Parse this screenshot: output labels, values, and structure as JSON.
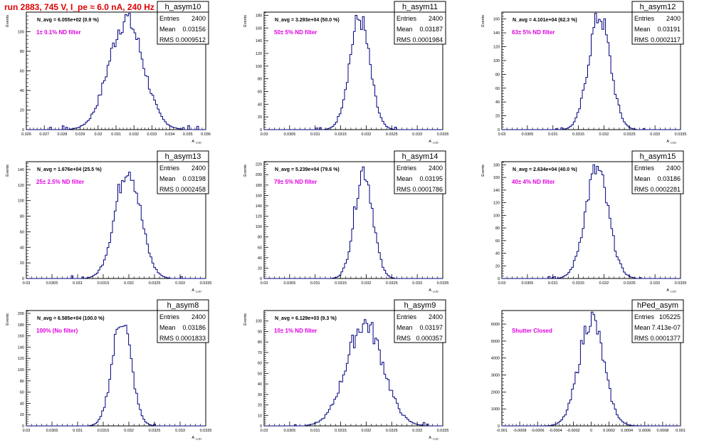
{
  "page": {
    "title": "run 2883,   745 V, I_pe ≈ 6.0 nA, 240 Hz",
    "title_color": "#e00000",
    "hist_color": "#000080",
    "annotation_color": "#e000e0"
  },
  "chart_data": [
    {
      "type": "histogram",
      "name": "h_asym10",
      "ylabel": "Events",
      "xlabel": "A_LUD",
      "xlim": [
        0.026,
        0.036
      ],
      "ylim": [
        0,
        120
      ],
      "xticks": [
        "0.026",
        "0.027",
        "0.028",
        "0.029",
        "0.03",
        "0.031",
        "0.032",
        "0.033",
        "0.034",
        "0.035",
        "0.036"
      ],
      "yticks": [
        0,
        20,
        40,
        60,
        80,
        100
      ],
      "stats": {
        "Entries": "2400",
        "Mean": "0.03156",
        "RMS": "0.0009512"
      },
      "navg": "N_avg = 6.055e+02 (0.9 %)",
      "annotation": "1± 0.1% ND filter",
      "distribution": {
        "mean": 0.03156,
        "rms": 0.0009512,
        "peak": 113,
        "bin_width": 0.0001
      }
    },
    {
      "type": "histogram",
      "name": "h_asym11",
      "ylabel": "Events",
      "xlabel": "A_LUD",
      "xlim": [
        0.03,
        0.0335
      ],
      "ylim": [
        0,
        185
      ],
      "xticks": [
        "0.03",
        "0.0305",
        "0.031",
        "0.0315",
        "0.032",
        "0.0325",
        "0.033",
        "0.0335"
      ],
      "yticks": [
        0,
        20,
        40,
        60,
        80,
        100,
        120,
        140,
        160,
        180
      ],
      "stats": {
        "Entries": "2400",
        "Mean": "0.03187",
        "RMS": "0.0001984"
      },
      "navg": "N_avg = 3.293e+04 (50.0 %)",
      "annotation": "50± 5% ND filter",
      "distribution": {
        "mean": 0.03187,
        "rms": 0.0001984,
        "peak": 175,
        "bin_width": 3.5e-05
      }
    },
    {
      "type": "histogram",
      "name": "h_asym12",
      "ylabel": "Events",
      "xlabel": "A_LUD",
      "xlim": [
        0.03,
        0.0335
      ],
      "ylim": [
        0,
        170
      ],
      "xticks": [
        "0.03",
        "0.0305",
        "0.031",
        "0.0315",
        "0.032",
        "0.0325",
        "0.033",
        "0.0335"
      ],
      "yticks": [
        0,
        20,
        40,
        60,
        80,
        100,
        120,
        140,
        160
      ],
      "stats": {
        "Entries": "2400",
        "Mean": "0.03191",
        "RMS": "0.0002117"
      },
      "navg": "N_avg = 4.101e+04 (62.3 %)",
      "annotation": "63± 5% ND filter",
      "distribution": {
        "mean": 0.03191,
        "rms": 0.0002117,
        "peak": 165,
        "bin_width": 3.5e-05
      }
    },
    {
      "type": "histogram",
      "name": "h_asym13",
      "ylabel": "Events",
      "xlabel": "A_LUD",
      "xlim": [
        0.03,
        0.0335
      ],
      "ylim": [
        0,
        150
      ],
      "xticks": [
        "0.03",
        "0.0305",
        "0.031",
        "0.0315",
        "0.032",
        "0.0325",
        "0.033",
        "0.0335"
      ],
      "yticks": [
        0,
        20,
        40,
        60,
        80,
        100,
        120,
        140
      ],
      "stats": {
        "Entries": "2400",
        "Mean": "0.03198",
        "RMS": "0.0002458"
      },
      "navg": "N_avg = 1.676e+04 (25.5 %)",
      "annotation": "25± 2.5% ND filter",
      "distribution": {
        "mean": 0.03198,
        "rms": 0.0002458,
        "peak": 143,
        "bin_width": 3.5e-05
      }
    },
    {
      "type": "histogram",
      "name": "h_asym14",
      "ylabel": "Events",
      "xlabel": "A_LUD",
      "xlim": [
        0.03,
        0.0335
      ],
      "ylim": [
        0,
        225
      ],
      "xticks": [
        "0.03",
        "0.0305",
        "0.031",
        "0.0315",
        "0.032",
        "0.0325",
        "0.033",
        "0.0335"
      ],
      "yticks": [
        0,
        20,
        40,
        60,
        80,
        100,
        120,
        140,
        160,
        180,
        200,
        220
      ],
      "stats": {
        "Entries": "2400",
        "Mean": "0.03195",
        "RMS": "0.0001786"
      },
      "navg": "N_avg = 5.239e+04 (79.6 %)",
      "annotation": "79± 5% ND filter",
      "distribution": {
        "mean": 0.03195,
        "rms": 0.0001786,
        "peak": 210,
        "bin_width": 3.5e-05
      }
    },
    {
      "type": "histogram",
      "name": "h_asym15",
      "ylabel": "Events",
      "xlabel": "A_LUD",
      "xlim": [
        0.03,
        0.0335
      ],
      "ylim": [
        0,
        185
      ],
      "xticks": [
        "0.03",
        "0.0305",
        "0.031",
        "0.0315",
        "0.032",
        "0.0325",
        "0.033",
        "0.0335"
      ],
      "yticks": [
        0,
        20,
        40,
        60,
        80,
        100,
        120,
        140,
        160,
        180
      ],
      "stats": {
        "Entries": "2400",
        "Mean": "0.03186",
        "RMS": "0.0002281"
      },
      "navg": "N_avg = 2.634e+04 (40.0 %)",
      "annotation": "40± 4% ND filter",
      "distribution": {
        "mean": 0.03186,
        "rms": 0.0002281,
        "peak": 172,
        "bin_width": 3.5e-05
      }
    },
    {
      "type": "histogram",
      "name": "h_asym8",
      "ylabel": "Events",
      "xlabel": "A_LUD",
      "xlim": [
        0.03,
        0.0335
      ],
      "ylim": [
        0,
        205
      ],
      "xticks": [
        "0.03",
        "0.0305",
        "0.031",
        "0.0315",
        "0.032",
        "0.0325",
        "0.033",
        "0.0335"
      ],
      "yticks": [
        0,
        20,
        40,
        60,
        80,
        100,
        120,
        140,
        160,
        180,
        200
      ],
      "stats": {
        "Entries": "2400",
        "Mean": "0.03186",
        "RMS": "0.0001833"
      },
      "navg": "N_avg = 6.585e+04 (100.0 %)",
      "annotation": "100% (No filter)",
      "distribution": {
        "mean": 0.03186,
        "rms": 0.0001833,
        "peak": 192,
        "bin_width": 3.5e-05
      }
    },
    {
      "type": "histogram",
      "name": "h_asym9",
      "ylabel": "Events",
      "xlabel": "A_LUD",
      "xlim": [
        0.03,
        0.0335
      ],
      "ylim": [
        0,
        110
      ],
      "xticks": [
        "0.03",
        "0.0305",
        "0.031",
        "0.0315",
        "0.032",
        "0.0325",
        "0.033",
        "0.0335"
      ],
      "yticks": [
        0,
        10,
        20,
        30,
        40,
        50,
        60,
        70,
        80,
        90,
        100
      ],
      "stats": {
        "Entries": "2400",
        "Mean": "0.03197",
        "RMS": "0.000357"
      },
      "navg": "N_avg = 6.129e+03 (9.3 %)",
      "annotation": "10± 1% ND filter",
      "distribution": {
        "mean": 0.03197,
        "rms": 0.000357,
        "peak": 98,
        "bin_width": 3.5e-05
      }
    },
    {
      "type": "histogram",
      "name": "hPed_asym",
      "ylabel": "",
      "xlabel": "",
      "xlim": [
        -0.001,
        0.001
      ],
      "ylim": [
        0,
        6800
      ],
      "xticks": [
        "-0.001",
        "-0.0008",
        "-0.0006",
        "-0.0004",
        "-0.0002",
        "0",
        "0.0002",
        "0.0004",
        "0.0006",
        "0.0008",
        "0.001"
      ],
      "yticks": [
        0,
        1000,
        2000,
        3000,
        4000,
        5000,
        6000
      ],
      "stats": {
        "Entries": "105225",
        "Mean": "7.413e-07",
        "RMS": "0.0001377"
      },
      "navg": "",
      "annotation": "Shutter Closed",
      "distribution": {
        "mean": 7.413e-07,
        "rms": 0.0001377,
        "peak": 6350,
        "bin_width": 2e-05
      }
    }
  ]
}
